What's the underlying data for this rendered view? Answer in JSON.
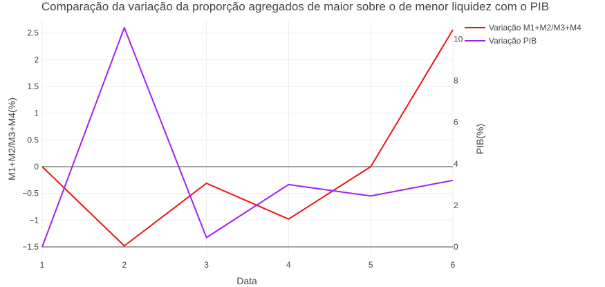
{
  "chart_data": {
    "type": "line",
    "title": "Comparação da variação da proporção agregados de maior sobre o de menor liquidez com o PIB",
    "xlabel": "Data",
    "ylabel": "M1+M2/M3+M4(%)",
    "y2label": "PIB(%)",
    "x": [
      1,
      2,
      3,
      4,
      5,
      6
    ],
    "x_ticks": [
      "1",
      "2",
      "3",
      "4",
      "5",
      "6"
    ],
    "ylim": [
      -1.5,
      2.6
    ],
    "y_ticks": [
      "2.5",
      "2",
      "1.5",
      "1",
      "0.5",
      "0",
      "−0.5",
      "−1",
      "−1.5"
    ],
    "y_tick_values": [
      2.5,
      2,
      1.5,
      1,
      0.5,
      0,
      -0.5,
      -1,
      -1.5
    ],
    "y2lim": [
      0,
      10.55
    ],
    "y2_ticks": [
      "10",
      "8",
      "6",
      "4",
      "2",
      "0"
    ],
    "y2_tick_values": [
      10,
      8,
      6,
      4,
      2,
      0
    ],
    "series": [
      {
        "name": "Variação M1+M2/M3+M4",
        "axis": "y",
        "color": "#ee1111",
        "values": [
          0,
          -1.48,
          -0.31,
          -0.98,
          0,
          2.56
        ]
      },
      {
        "name": "Variação PIB",
        "axis": "y2",
        "color": "#a020f0",
        "values": [
          0,
          10.55,
          0.45,
          3.0,
          2.45,
          3.2
        ]
      }
    ],
    "grid": true,
    "legend_position": "top-right"
  }
}
